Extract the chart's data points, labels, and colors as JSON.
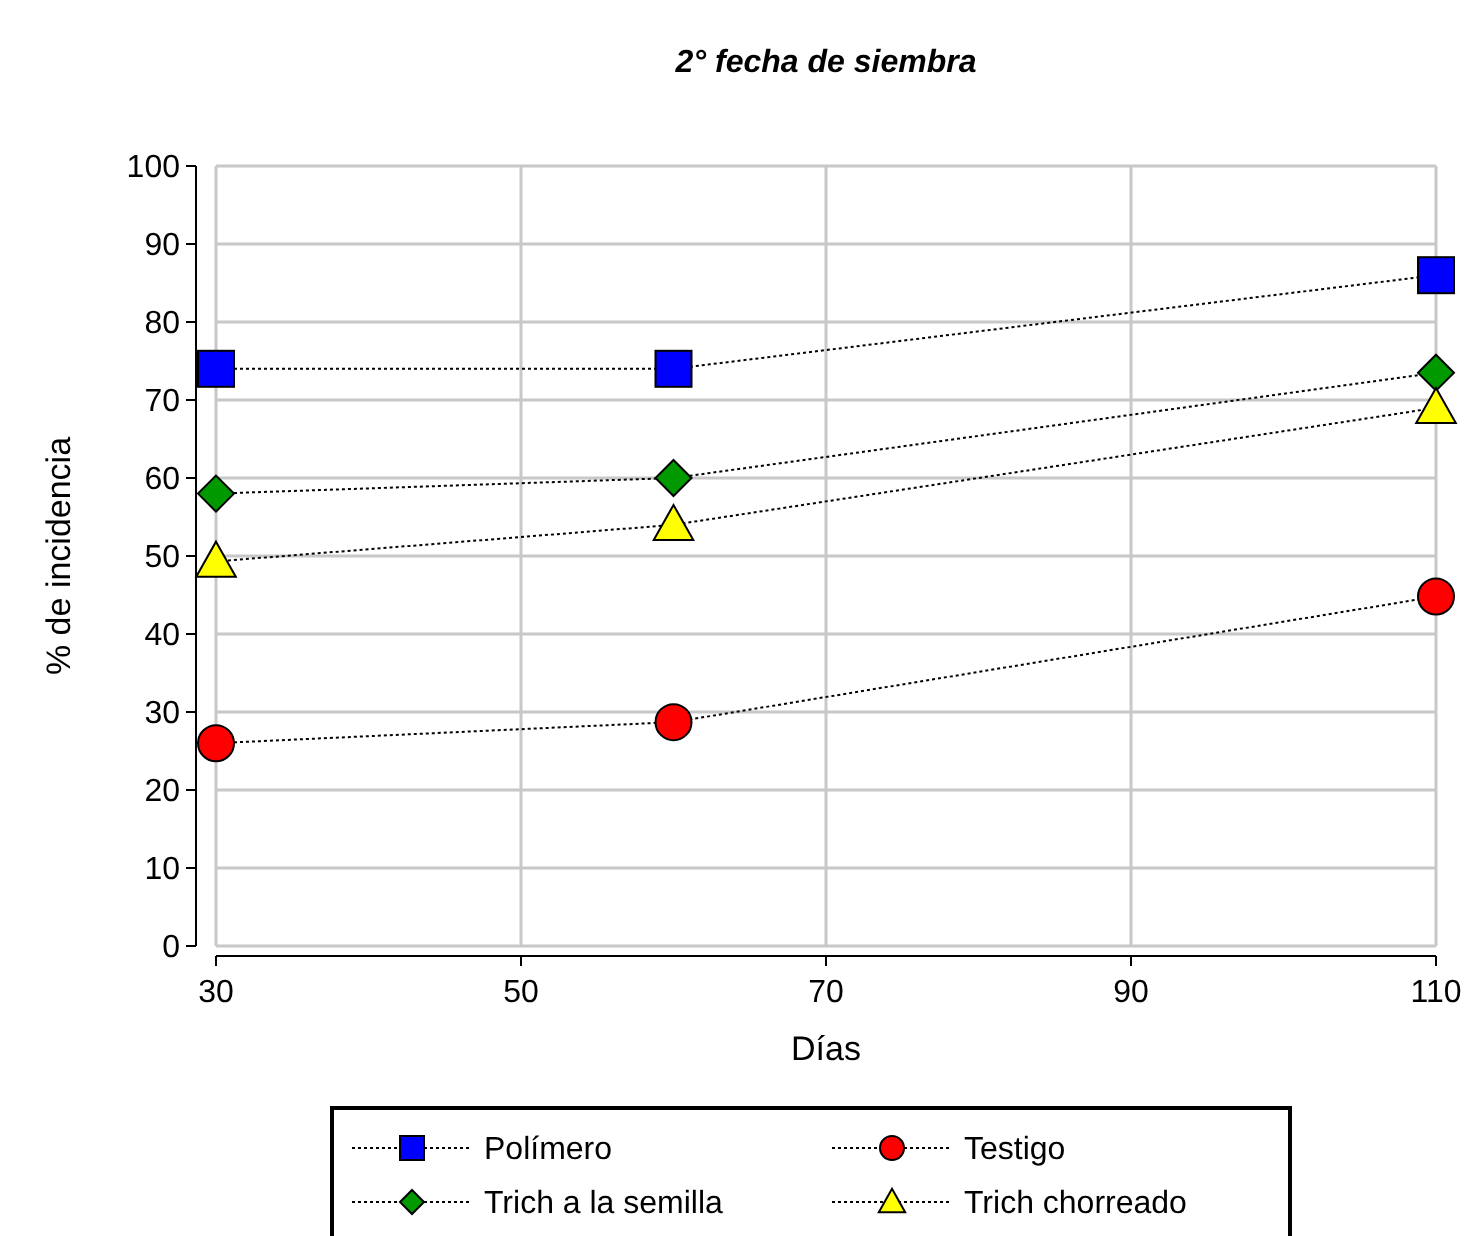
{
  "chart_data": {
    "type": "line",
    "title": "2° fecha de siembra",
    "xlabel": "Días",
    "ylabel": "% de incidencia",
    "x": [
      30,
      60,
      110
    ],
    "xlim": [
      30,
      110
    ],
    "xticks": [
      30,
      50,
      70,
      90,
      110
    ],
    "ylim": [
      0,
      100
    ],
    "yticks": [
      0,
      10,
      20,
      30,
      40,
      50,
      60,
      70,
      80,
      90,
      100
    ],
    "grid": true,
    "legend": "bottom",
    "line_style": "dotted",
    "series": [
      {
        "name": "Polímero",
        "color": "#0000ff",
        "marker": "square",
        "values": [
          74,
          74,
          86
        ]
      },
      {
        "name": "Testigo",
        "color": "#ff0000",
        "marker": "circle",
        "values": [
          26,
          28.7,
          44.8
        ]
      },
      {
        "name": "Trich a la semilla",
        "color": "#009900",
        "marker": "diamond",
        "values": [
          58,
          60,
          73.5
        ]
      },
      {
        "name": "Trich chorreado",
        "color": "#ffff00",
        "marker": "triangle",
        "values": [
          49.3,
          54,
          69
        ]
      }
    ]
  }
}
